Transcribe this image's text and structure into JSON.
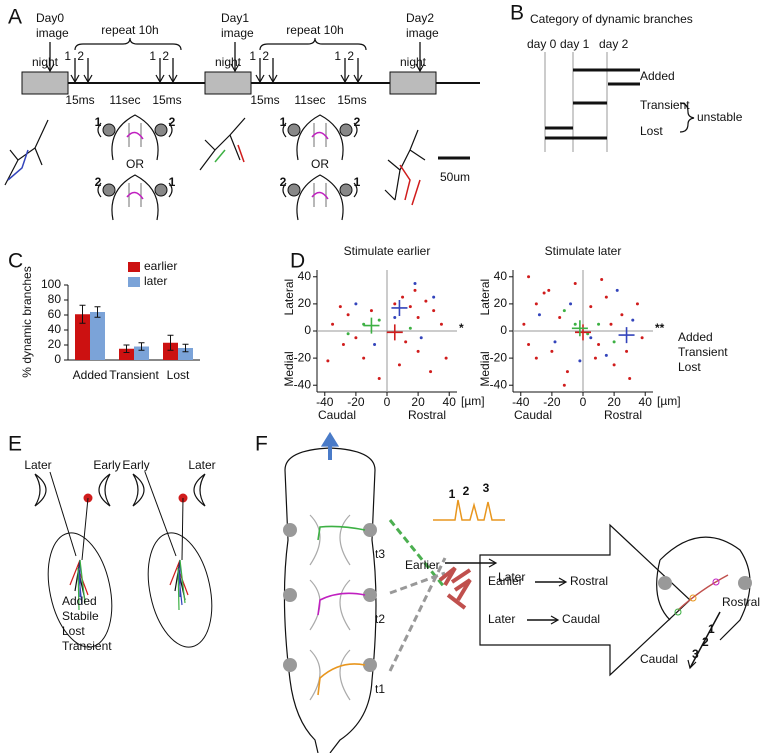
{
  "panel_labels": [
    "A",
    "B",
    "C",
    "D",
    "E",
    "F"
  ],
  "panel_a": {
    "nights": [
      "night",
      "night",
      "night"
    ],
    "days": [
      {
        "day": "Day0",
        "word": "image"
      },
      {
        "day": "Day1",
        "word": "image"
      },
      {
        "day": "Day2",
        "word": "image"
      }
    ],
    "stimuli": [
      {
        "repeat": "repeat 10h",
        "numbers": [
          "1",
          "2",
          "1",
          "2"
        ],
        "durations": [
          "15ms",
          "15ms"
        ],
        "interval": "11sec"
      },
      {
        "repeat": "repeat 10h",
        "numbers": [
          "1",
          "2",
          "1",
          "2"
        ],
        "durations": [
          "15ms",
          "15ms"
        ],
        "interval": "11sec"
      }
    ],
    "fish": [
      {
        "top": [
          "1",
          "2"
        ],
        "or": "OR",
        "bottom": [
          "2",
          "1"
        ]
      },
      {
        "top": [
          "1",
          "2"
        ],
        "or": "OR",
        "bottom": [
          "2",
          "1"
        ]
      }
    ],
    "scale_bar": "50um"
  },
  "panel_b": {
    "title": "Category of dynamic branches",
    "days": [
      "day 0",
      "day 1",
      "day 2"
    ],
    "categories": [
      {
        "name": "Added",
        "color": "#d01c1c"
      },
      {
        "name": "Transient",
        "color": "#3cb043"
      },
      {
        "name": "Lost",
        "color": "#3344bb"
      }
    ],
    "group": "unstable"
  },
  "panel_c": {
    "type": "bar",
    "y_label": "% dynamic branches",
    "categories": [
      "Added",
      "Transient",
      "Lost"
    ],
    "series": [
      {
        "name": "earlier",
        "color": "#cc1111",
        "values": [
          61,
          15,
          23
        ],
        "errors": [
          12,
          5,
          10
        ]
      },
      {
        "name": "later",
        "color": "#7ba3d8",
        "values": [
          64,
          18,
          16
        ],
        "errors": [
          7,
          5,
          5
        ]
      }
    ],
    "ylim": [
      0,
      100
    ],
    "yticks": [
      0,
      20,
      40,
      60,
      80,
      100
    ]
  },
  "panel_d": {
    "legend": "right",
    "x_labels": [
      "Caudal",
      "Rostral"
    ],
    "y_labels": [
      "Lateral",
      "Medial"
    ],
    "unit": "[µm]",
    "charts": [
      {
        "type": "scatter",
        "title": "Stimulate earlier",
        "xlim": [
          -45,
          45
        ],
        "ylim": [
          -45,
          45
        ],
        "xticks": [
          -40,
          -20,
          0,
          20,
          40
        ],
        "yticks": [
          -40,
          -20,
          0,
          20,
          40
        ],
        "series": [
          {
            "name": "Added",
            "color": "#d01c1c",
            "x": [
              -30,
              -25,
              -35,
              -28,
              -15,
              -20,
              -10,
              5,
              10,
              15,
              20,
              25,
              30,
              35,
              12,
              20,
              28,
              8,
              -5,
              38,
              18,
              -38
            ],
            "y": [
              18,
              12,
              5,
              -10,
              -20,
              -5,
              15,
              20,
              25,
              18,
              10,
              22,
              15,
              5,
              -8,
              -15,
              -30,
              -25,
              -35,
              -20,
              30,
              -22
            ]
          },
          {
            "name": "Transient",
            "color": "#3cb043",
            "x": [
              -15,
              -5,
              15,
              -25
            ],
            "y": [
              5,
              8,
              2,
              -2
            ]
          },
          {
            "name": "Lost",
            "color": "#3344bb",
            "x": [
              -8,
              18,
              22,
              30,
              -20,
              5
            ],
            "y": [
              -10,
              35,
              -5,
              25,
              20,
              10
            ]
          }
        ],
        "means": [
          {
            "x": 5,
            "y": -1,
            "color": "#d01c1c"
          },
          {
            "x": -10,
            "y": 4,
            "color": "#3cb043"
          },
          {
            "x": 8,
            "y": 17,
            "color": "#3344bb"
          }
        ],
        "significance": {
          "text": "*",
          "color": "#3cb043"
        }
      },
      {
        "type": "scatter",
        "title": "Stimulate later",
        "xlim": [
          -45,
          45
        ],
        "ylim": [
          -45,
          45
        ],
        "xticks": [
          -40,
          -20,
          0,
          20,
          40
        ],
        "yticks": [
          -40,
          -20,
          0,
          20,
          40
        ],
        "series": [
          {
            "name": "Added",
            "color": "#d01c1c",
            "x": [
              -35,
              -30,
              -25,
              -38,
              -20,
              -15,
              -10,
              -5,
              5,
              10,
              15,
              20,
              25,
              30,
              35,
              -30,
              -12,
              8,
              18,
              28,
              -22,
              12,
              38,
              -35
            ],
            "y": [
              40,
              20,
              28,
              5,
              -15,
              10,
              -30,
              35,
              18,
              -10,
              25,
              -25,
              12,
              -35,
              20,
              -20,
              -40,
              -20,
              5,
              -15,
              30,
              38,
              -5,
              -10
            ]
          },
          {
            "name": "Transient",
            "color": "#3cb043",
            "x": [
              -5,
              3,
              -12,
              20,
              10
            ],
            "y": [
              5,
              -2,
              15,
              -8,
              5
            ]
          },
          {
            "name": "Lost",
            "color": "#3344bb",
            "x": [
              -28,
              -18,
              -8,
              5,
              22,
              32,
              -2,
              15
            ],
            "y": [
              12,
              -8,
              20,
              -5,
              30,
              8,
              -22,
              -18
            ]
          }
        ],
        "means": [
          {
            "x": 0,
            "y": -1,
            "color": "#d01c1c"
          },
          {
            "x": -2,
            "y": 2,
            "color": "#3cb043"
          },
          {
            "x": 28,
            "y": -3,
            "color": "#3344bb"
          }
        ],
        "significance": {
          "text": "**",
          "color": "#3344bb"
        }
      }
    ]
  },
  "panel_e": {
    "left": [
      {
        "text": "Later",
        "color": "#111"
      },
      {
        "text": "Early",
        "color": "#d01c1c"
      }
    ],
    "right": [
      {
        "text": "Early",
        "color": "#111"
      },
      {
        "text": "Later",
        "color": "#d01c1c"
      }
    ],
    "legend": [
      {
        "text": "Added",
        "color": "#d01c1c"
      },
      {
        "text": "Stabile",
        "color": "#111"
      },
      {
        "text": "Lost",
        "color": "#3344bb"
      },
      {
        "text": "Transient",
        "color": "#3cb043"
      }
    ]
  },
  "panel_f": {
    "segments": [
      "t3",
      "t2",
      "t1"
    ],
    "traces": [
      "1",
      "2",
      "3"
    ],
    "timeline": [
      "Earlier",
      "Later"
    ],
    "rules": [
      {
        "from": "Earlier",
        "to": "Rostral"
      },
      {
        "from": "Later",
        "to": "Caudal"
      }
    ],
    "result": {
      "rostral": "Rostral",
      "caudal": "Caudal",
      "numbers": [
        "1",
        "2",
        "3"
      ]
    }
  }
}
